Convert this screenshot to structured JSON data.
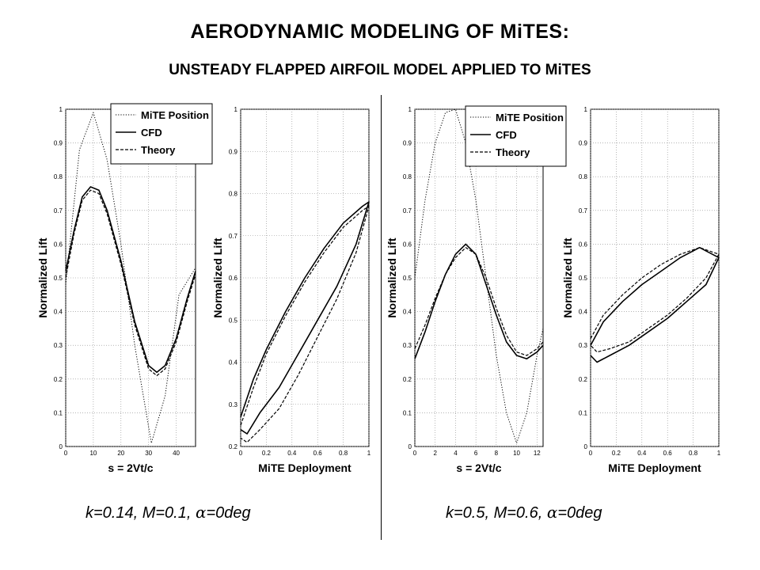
{
  "title": "AERODYNAMIC MODELING OF MiTES:",
  "subtitle": "UNSTEADY FLAPPED AIRFOIL MODEL APPLIED TO MiTES",
  "captions": {
    "left": {
      "pre": "k=0.14, M=0.1, ",
      "alpha": "α",
      "post": "=0deg"
    },
    "right": {
      "pre": "k=0.5, M=0.6, ",
      "alpha": "α",
      "post": "=0deg"
    }
  },
  "legend": [
    "MiTE Position",
    "CFD",
    "Theory"
  ],
  "chart_data": [
    {
      "type": "line",
      "xlabel": "s = 2Vt/c",
      "ylabel": "Normalized Lift",
      "xlim": [
        0,
        47
      ],
      "ylim": [
        0,
        1
      ],
      "xticks": [
        0,
        10,
        20,
        30,
        40
      ],
      "yticks": [
        0,
        0.1,
        0.2,
        0.3,
        0.4,
        0.5,
        0.6,
        0.7,
        0.8,
        0.9,
        1
      ],
      "grid": true,
      "legend": "top-right",
      "series": [
        {
          "name": "MiTE Position",
          "x": [
            0,
            5,
            10,
            15,
            20,
            25,
            31,
            36,
            41,
            47
          ],
          "y": [
            0.48,
            0.88,
            0.99,
            0.85,
            0.6,
            0.3,
            0.01,
            0.15,
            0.45,
            0.53
          ]
        },
        {
          "name": "CFD",
          "x": [
            0,
            3,
            6,
            9,
            12,
            15,
            20,
            25,
            30,
            33,
            36,
            40,
            44,
            47
          ],
          "y": [
            0.52,
            0.64,
            0.74,
            0.77,
            0.76,
            0.7,
            0.55,
            0.37,
            0.24,
            0.22,
            0.24,
            0.32,
            0.44,
            0.52
          ]
        },
        {
          "name": "Theory",
          "x": [
            0,
            3,
            6,
            9,
            12,
            15,
            20,
            25,
            30,
            33,
            36,
            40,
            44,
            47
          ],
          "y": [
            0.5,
            0.63,
            0.73,
            0.76,
            0.75,
            0.69,
            0.54,
            0.36,
            0.23,
            0.21,
            0.23,
            0.31,
            0.43,
            0.51
          ]
        }
      ]
    },
    {
      "type": "line",
      "xlabel": "MiTE Deployment",
      "ylabel": "Normalized Lift",
      "xlim": [
        0,
        1
      ],
      "ylim": [
        0.2,
        1
      ],
      "xticks": [
        0,
        0.2,
        0.4,
        0.6,
        0.8,
        1
      ],
      "yticks": [
        0.2,
        0.3,
        0.4,
        0.5,
        0.6,
        0.7,
        0.8,
        0.9,
        1
      ],
      "grid": true,
      "series": [
        {
          "name": "CFD",
          "x": [
            0,
            0.1,
            0.2,
            0.35,
            0.5,
            0.65,
            0.8,
            0.95,
            1,
            0.9,
            0.75,
            0.6,
            0.45,
            0.3,
            0.15,
            0.05,
            0
          ],
          "y": [
            0.27,
            0.36,
            0.43,
            0.52,
            0.6,
            0.67,
            0.73,
            0.77,
            0.78,
            0.68,
            0.58,
            0.5,
            0.42,
            0.34,
            0.28,
            0.23,
            0.24
          ]
        },
        {
          "name": "Theory",
          "x": [
            0,
            0.1,
            0.2,
            0.35,
            0.5,
            0.65,
            0.8,
            0.95,
            1,
            0.9,
            0.75,
            0.6,
            0.45,
            0.3,
            0.15,
            0.05,
            0
          ],
          "y": [
            0.25,
            0.34,
            0.42,
            0.51,
            0.59,
            0.66,
            0.72,
            0.76,
            0.77,
            0.66,
            0.55,
            0.46,
            0.37,
            0.29,
            0.24,
            0.21,
            0.22
          ]
        }
      ]
    },
    {
      "type": "line",
      "xlabel": "s = 2Vt/c",
      "ylabel": "Normalized Lift",
      "xlim": [
        0,
        12.6
      ],
      "ylim": [
        0,
        1
      ],
      "xticks": [
        0,
        2,
        4,
        6,
        8,
        10,
        12
      ],
      "yticks": [
        0,
        0.1,
        0.2,
        0.3,
        0.4,
        0.5,
        0.6,
        0.7,
        0.8,
        0.9,
        1
      ],
      "grid": true,
      "legend": "top-right",
      "series": [
        {
          "name": "MiTE Position",
          "x": [
            0,
            1,
            2,
            3,
            4,
            5,
            6,
            7,
            8,
            9,
            10,
            11,
            12,
            12.6
          ],
          "y": [
            0.5,
            0.73,
            0.9,
            0.99,
            1.0,
            0.9,
            0.73,
            0.5,
            0.27,
            0.1,
            0.01,
            0.1,
            0.27,
            0.35
          ]
        },
        {
          "name": "CFD",
          "x": [
            0,
            1,
            2,
            3,
            4,
            5,
            6,
            7,
            8,
            9,
            10,
            11,
            12,
            12.6
          ],
          "y": [
            0.26,
            0.34,
            0.43,
            0.51,
            0.57,
            0.6,
            0.57,
            0.48,
            0.39,
            0.31,
            0.27,
            0.26,
            0.28,
            0.3
          ]
        },
        {
          "name": "Theory",
          "x": [
            0,
            1,
            2,
            3,
            4,
            5,
            6,
            7,
            8,
            9,
            10,
            11,
            12,
            12.6
          ],
          "y": [
            0.29,
            0.36,
            0.44,
            0.51,
            0.56,
            0.59,
            0.57,
            0.5,
            0.41,
            0.33,
            0.28,
            0.27,
            0.29,
            0.31
          ]
        }
      ]
    },
    {
      "type": "line",
      "xlabel": "MiTE Deployment",
      "ylabel": "Normalized Lift",
      "xlim": [
        0,
        1
      ],
      "ylim": [
        0,
        1
      ],
      "xticks": [
        0,
        0.2,
        0.4,
        0.6,
        0.8,
        1
      ],
      "yticks": [
        0,
        0.1,
        0.2,
        0.3,
        0.4,
        0.5,
        0.6,
        0.7,
        0.8,
        0.9,
        1
      ],
      "grid": true,
      "series": [
        {
          "name": "CFD",
          "x": [
            0,
            0.1,
            0.25,
            0.4,
            0.55,
            0.7,
            0.85,
            1,
            0.9,
            0.75,
            0.6,
            0.45,
            0.3,
            0.15,
            0.05,
            0
          ],
          "y": [
            0.3,
            0.37,
            0.43,
            0.48,
            0.52,
            0.56,
            0.59,
            0.56,
            0.48,
            0.43,
            0.38,
            0.34,
            0.3,
            0.27,
            0.25,
            0.27
          ]
        },
        {
          "name": "Theory",
          "x": [
            0,
            0.1,
            0.25,
            0.4,
            0.55,
            0.7,
            0.85,
            1,
            0.9,
            0.75,
            0.6,
            0.45,
            0.3,
            0.15,
            0.05,
            0
          ],
          "y": [
            0.32,
            0.39,
            0.45,
            0.5,
            0.54,
            0.57,
            0.59,
            0.57,
            0.5,
            0.44,
            0.39,
            0.35,
            0.31,
            0.29,
            0.28,
            0.3
          ]
        }
      ]
    }
  ]
}
